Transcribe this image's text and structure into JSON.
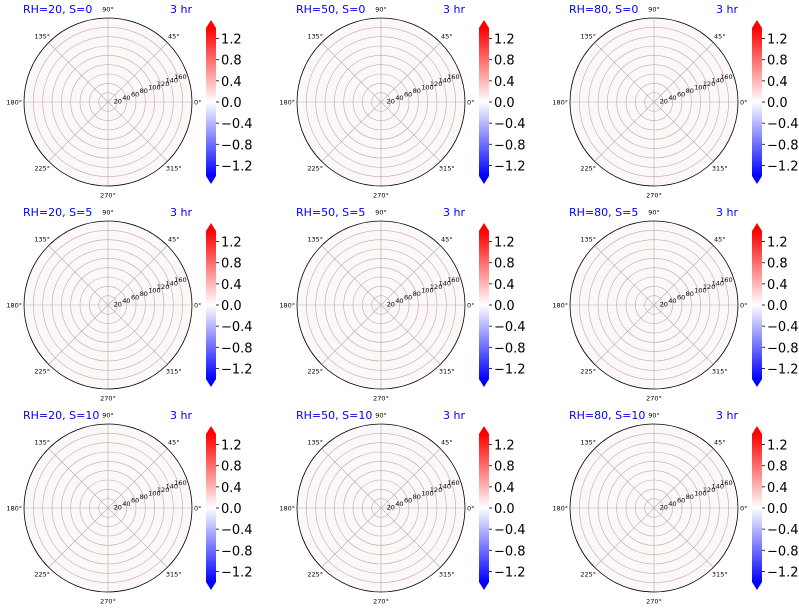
{
  "figure": {
    "time_label": "3 hr",
    "title_color": "#0000ff"
  },
  "polar": {
    "angle_ticks": [
      "0°",
      "45°",
      "90°",
      "135°",
      "180°",
      "225°",
      "270°",
      "315°"
    ],
    "radial_ticks": [
      "20",
      "40",
      "60",
      "80",
      "100",
      "120",
      "140",
      "160"
    ],
    "radial_values": [
      20,
      40,
      60,
      80,
      100,
      120,
      140,
      160
    ],
    "r_max": 180,
    "grid_color": "#b0b0b0"
  },
  "colorbar": {
    "ticks": [
      "1.2",
      "0.8",
      "0.4",
      "0.0",
      "−0.4",
      "−0.8",
      "−1.2"
    ],
    "tick_values": [
      1.2,
      0.8,
      0.4,
      0.0,
      -0.4,
      -0.8,
      -1.2
    ],
    "vmin": -1.4,
    "vmax": 1.4,
    "cmap": "bwr",
    "colors": {
      "low": "#0000ff",
      "mid": "#ffffff",
      "high": "#ff0000"
    }
  },
  "chart_data": [
    {
      "type": "heatmap",
      "title": "RH=20, S=0",
      "subtitle": "3 hr",
      "values": [],
      "clim": [
        -1.4,
        1.4
      ]
    },
    {
      "type": "heatmap",
      "title": "RH=50, S=0",
      "subtitle": "3 hr",
      "values": [],
      "clim": [
        -1.4,
        1.4
      ]
    },
    {
      "type": "heatmap",
      "title": "RH=80, S=0",
      "subtitle": "3 hr",
      "values": [],
      "clim": [
        -1.4,
        1.4
      ]
    },
    {
      "type": "heatmap",
      "title": "RH=20, S=5",
      "subtitle": "3 hr",
      "values": [],
      "clim": [
        -1.4,
        1.4
      ]
    },
    {
      "type": "heatmap",
      "title": "RH=50, S=5",
      "subtitle": "3 hr",
      "values": [],
      "clim": [
        -1.4,
        1.4
      ]
    },
    {
      "type": "heatmap",
      "title": "RH=80, S=5",
      "subtitle": "3 hr",
      "values": [],
      "clim": [
        -1.4,
        1.4
      ]
    },
    {
      "type": "heatmap",
      "title": "RH=20, S=10",
      "subtitle": "3 hr",
      "values": [],
      "clim": [
        -1.4,
        1.4
      ]
    },
    {
      "type": "heatmap",
      "title": "RH=50, S=10",
      "subtitle": "3 hr",
      "values": [],
      "clim": [
        -1.4,
        1.4
      ]
    },
    {
      "type": "heatmap",
      "title": "RH=80, S=10",
      "subtitle": "3 hr",
      "values": [],
      "clim": [
        -1.4,
        1.4
      ]
    }
  ]
}
